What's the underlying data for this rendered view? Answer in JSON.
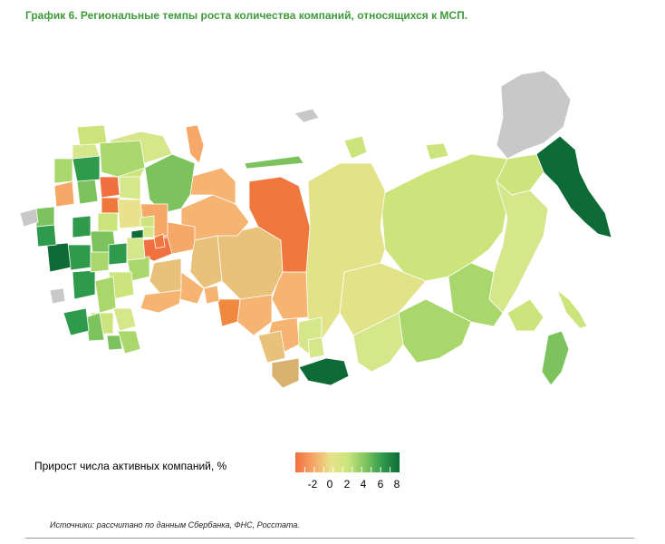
{
  "title": "График 6. Региональные темпы роста количества компаний, относящихся к МСП.",
  "legend": {
    "label": "Прирост числа активных компаний, %",
    "ticks": [
      "-2",
      "0",
      "2",
      "4",
      "6",
      "8"
    ],
    "colors": [
      "#f0703f",
      "#f6a868",
      "#e7e28b",
      "#cbe57c",
      "#7cc35e",
      "#2e9a4b",
      "#0e6b36"
    ]
  },
  "source": "Источники: рассчитано по данным Сбербанка, ФНС, Росстата.",
  "map": {
    "no_data_color": "#c8c8c8",
    "scale_range": [
      -3,
      8
    ]
  }
}
